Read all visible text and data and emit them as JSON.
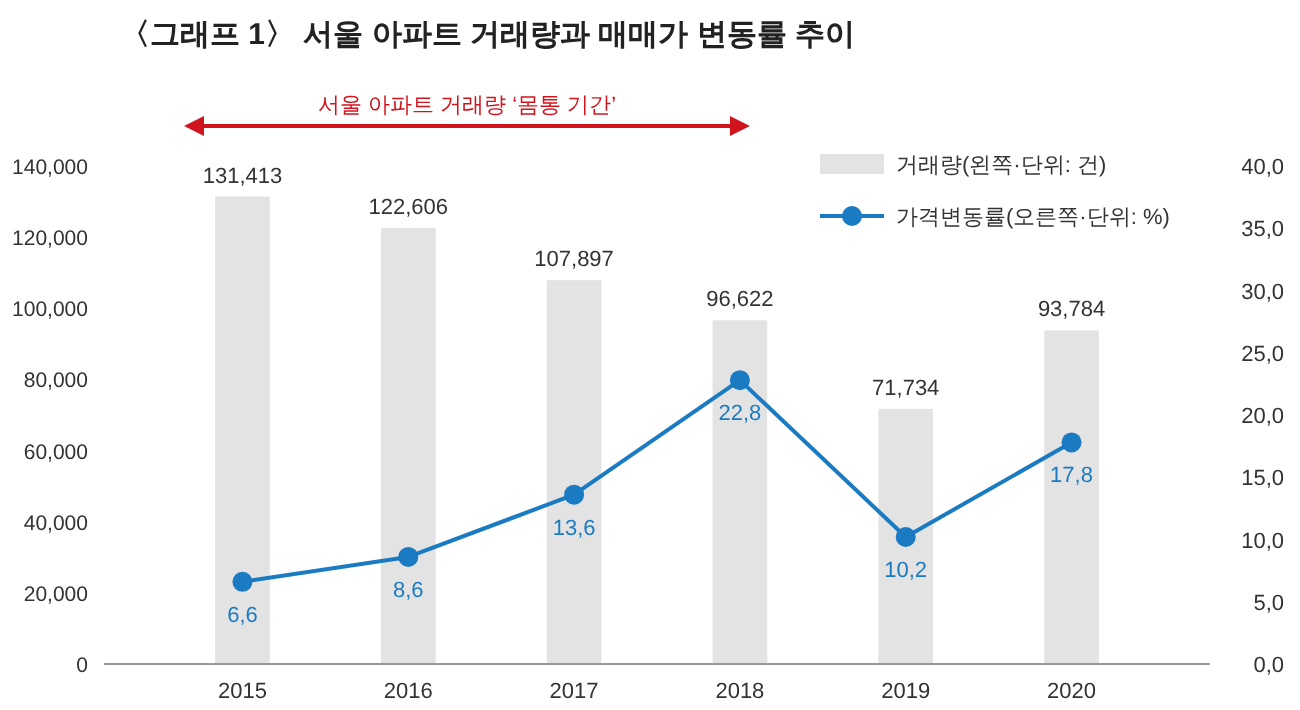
{
  "chart_data": {
    "type": "bar",
    "title": "〈그래프 1〉 서울 아파트 거래량과 매매가 변동률 추이",
    "annotations": [
      "서울 아파트 거래량 ‘몸통 기간’"
    ],
    "categories": [
      "2015",
      "2016",
      "2017",
      "2018",
      "2019",
      "2020"
    ],
    "series": [
      {
        "name": "거래량(왼쪽·단위: 건)",
        "color": "#e3e3e3",
        "values": [
          131413,
          122606,
          107897,
          96622,
          71734,
          93784
        ],
        "value_labels": [
          "131,413",
          "122,606",
          "107,897",
          "96,622",
          "71,734",
          "93,784"
        ]
      },
      {
        "name": "가격변동률(오른쪽·단위: %)",
        "type": "line",
        "axis": "y2",
        "color": "#1a7ac2",
        "marker": "circle",
        "values": [
          6.6,
          8.6,
          13.6,
          22.8,
          10.2,
          17.8
        ],
        "value_labels": [
          "6,6",
          "8,6",
          "13,6",
          "22,8",
          "10,2",
          "17,8"
        ]
      }
    ],
    "ylim": [
      0,
      140000
    ],
    "yticks": [
      {
        "value": 0,
        "label": "0"
      },
      {
        "value": 20000,
        "label": "20,000"
      },
      {
        "value": 40000,
        "label": "40,000"
      },
      {
        "value": 60000,
        "label": "60,000"
      },
      {
        "value": 80000,
        "label": "80,000"
      },
      {
        "value": 100000,
        "label": "100,000"
      },
      {
        "value": 120000,
        "label": "120,000"
      },
      {
        "value": 140000,
        "label": "140,000"
      }
    ],
    "y2lim": [
      0,
      40
    ],
    "y2ticks": [
      {
        "value": 0,
        "label": "0,0"
      },
      {
        "value": 5,
        "label": "5,0"
      },
      {
        "value": 10,
        "label": "10,0"
      },
      {
        "value": 15,
        "label": "15,0"
      },
      {
        "value": 20,
        "label": "20,0"
      },
      {
        "value": 25,
        "label": "25,0"
      },
      {
        "value": 30,
        "label": "30,0"
      },
      {
        "value": 35,
        "label": "35,0"
      },
      {
        "value": 40,
        "label": "40,0"
      }
    ],
    "legend": "top right",
    "grid": false
  }
}
